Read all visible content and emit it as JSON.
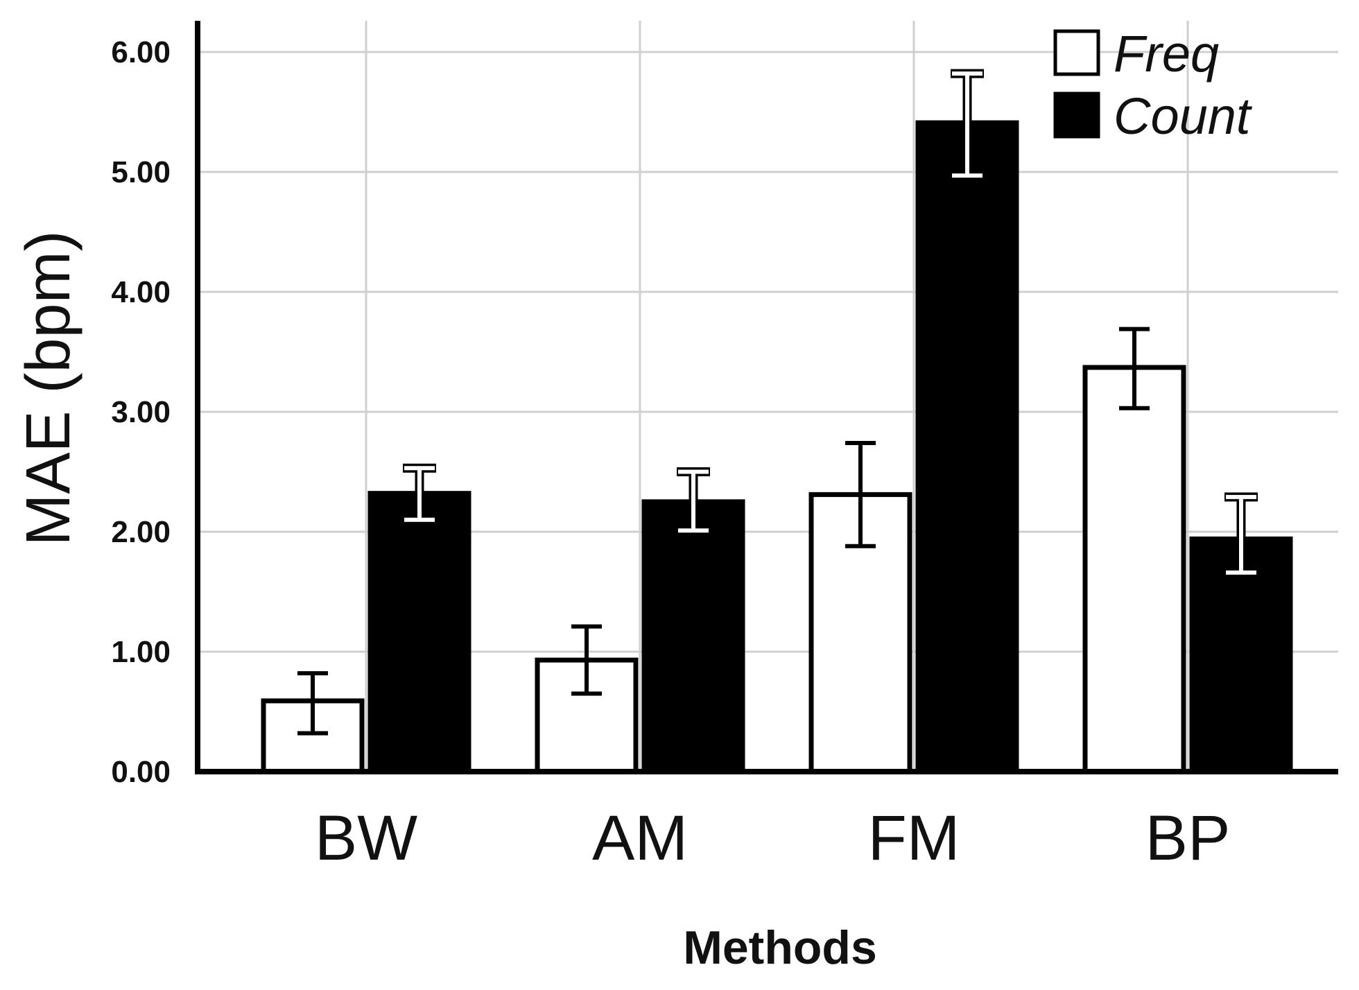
{
  "chart_data": {
    "type": "bar",
    "title": "",
    "xlabel": "Methods",
    "ylabel": "MAE (bpm)",
    "categories": [
      "BW",
      "AM",
      "FM",
      "BP"
    ],
    "ylim": [
      0,
      6.0
    ],
    "yticks": [
      "0.00",
      "1.00",
      "2.00",
      "3.00",
      "4.00",
      "5.00",
      "6.00"
    ],
    "grid": true,
    "legend_position": "top-right",
    "series": [
      {
        "name": "Freq",
        "color": "#ffffff",
        "values": [
          0.59,
          0.93,
          2.31,
          3.37
        ],
        "error_low": [
          0.32,
          0.65,
          1.88,
          3.03
        ],
        "error_high": [
          0.82,
          1.21,
          2.74,
          3.69
        ]
      },
      {
        "name": "Count",
        "color": "#000000",
        "values": [
          2.32,
          2.25,
          5.41,
          1.94
        ],
        "error_low": [
          2.1,
          2.01,
          4.97,
          1.66
        ],
        "error_high": [
          2.53,
          2.5,
          5.82,
          2.29
        ]
      }
    ]
  }
}
